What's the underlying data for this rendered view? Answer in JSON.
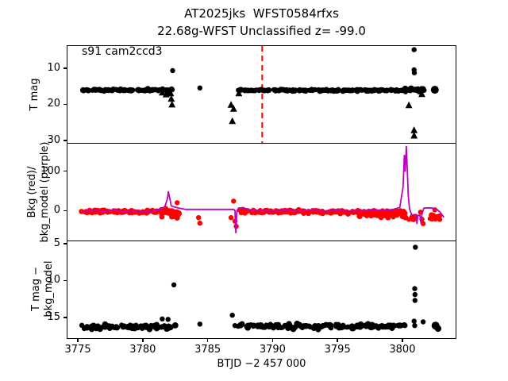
{
  "figure": {
    "title_line1": "AT2025jks  WFST0584rfxs",
    "title_line2": "22.68g-WFST Unclassified z= -99.0",
    "background": "#ffffff"
  },
  "chart_data": {
    "type": "scatter",
    "title": "AT2025jks  WFST0584rfxs — 22.68g-WFST Unclassified z= -99.0",
    "xlabel": "BTJD −2 457 000",
    "xlim": [
      3774.2,
      3804.1
    ],
    "xticks": [
      3775,
      3780,
      3785,
      3790,
      3795,
      3800
    ],
    "grid": false,
    "legend": "none",
    "colors": {
      "black": "#000000",
      "red": "#ff0000",
      "purple": "#bf00bf",
      "frame": "#000000"
    },
    "band_format": "[x_start, x_end, y_mean, y_sd, n_points] — dense noisy scatter band",
    "panels": [
      {
        "name": "t-mag",
        "ylabel_lines": [
          "T mag",
          ""
        ],
        "ylim_top": 3.9,
        "ylim_bottom": 30.7,
        "yticks": [
          10,
          20,
          30
        ],
        "annotation": "s91 cam2ccd3",
        "vline": {
          "x": 3789.2,
          "color": "#ff0000",
          "style": "dashed"
        },
        "series": [
          {
            "kind": "band",
            "color": "black",
            "marker": "circle",
            "r": 3.3,
            "seed": 11,
            "segments": [
              [
                3775.4,
                3782.4,
                16.1,
                0.22,
                72
              ],
              [
                3787.35,
                3800.2,
                16.15,
                0.2,
                130
              ],
              [
                3800.2,
                3801.6,
                16.0,
                0.45,
                22
              ]
            ]
          },
          {
            "kind": "points",
            "color": "black",
            "marker": "circle",
            "r": 3.2,
            "points": [
              [
                3782.3,
                10.7
              ],
              [
                3784.4,
                15.5
              ],
              [
                3800.9,
                4.9
              ],
              [
                3800.9,
                10.5
              ],
              [
                3800.92,
                11.3
              ],
              [
                3802.5,
                16.0,
                5
              ]
            ]
          },
          {
            "kind": "points",
            "color": "black",
            "marker": "triangle",
            "r": 4.4,
            "points": [
              [
                3781.5,
                16.9
              ],
              [
                3781.8,
                17.4
              ],
              [
                3782.0,
                16.7
              ],
              [
                3782.15,
                17.1
              ],
              [
                3782.2,
                18.6
              ],
              [
                3782.25,
                20.2
              ],
              [
                3786.8,
                20.3
              ],
              [
                3787.0,
                21.4
              ],
              [
                3786.9,
                24.8
              ],
              [
                3787.4,
                17.1
              ],
              [
                3800.5,
                20.4
              ],
              [
                3800.9,
                27.3
              ],
              [
                3800.9,
                28.8
              ],
              [
                3801.5,
                17.3
              ]
            ]
          }
        ]
      },
      {
        "name": "bkg-vs-model",
        "ylabel_lines": [
          "Bkg (red)/",
          "bkg_model (purple)"
        ],
        "ylim_top": 170,
        "ylim_bottom": -76,
        "yticks": [
          0,
          100
        ],
        "annotation": "",
        "series": [
          {
            "kind": "band",
            "color": "red",
            "marker": "circle",
            "r": 3.3,
            "seed": 7,
            "segments": [
              [
                3775.4,
                3782.5,
                -3,
                3,
                80
              ],
              [
                3781.4,
                3782.8,
                -8,
                10,
                26
              ],
              [
                3787.5,
                3800.3,
                -3,
                3.5,
                135
              ],
              [
                3796.5,
                3800.3,
                -9,
                7,
                45
              ],
              [
                3800.5,
                3801.1,
                -18,
                6,
                10
              ],
              [
                3802.2,
                3802.9,
                -17,
                6,
                14
              ]
            ]
          },
          {
            "kind": "points",
            "color": "red",
            "marker": "circle",
            "r": 3.2,
            "points": [
              [
                3782.65,
                20
              ],
              [
                3784.3,
                -18
              ],
              [
                3784.4,
                -32
              ],
              [
                3787.0,
                24
              ],
              [
                3786.8,
                -18
              ],
              [
                3787.1,
                -27
              ],
              [
                3787.2,
                -40
              ],
              [
                3801.4,
                -4
              ],
              [
                3801.5,
                -22
              ],
              [
                3801.6,
                -33
              ],
              [
                3802.5,
                2
              ]
            ]
          },
          {
            "kind": "line",
            "color": "purple",
            "width": 1.8,
            "points": [
              [
                3775.4,
                -2
              ],
              [
                3776.2,
                1
              ],
              [
                3777.0,
                -2
              ],
              [
                3777.8,
                1
              ],
              [
                3778.6,
                -2
              ],
              [
                3779.4,
                0
              ],
              [
                3780.2,
                -2
              ],
              [
                3780.9,
                0
              ],
              [
                3781.3,
                2
              ],
              [
                3781.7,
                10
              ],
              [
                3781.9,
                30
              ],
              [
                3781.97,
                48
              ],
              [
                3782.1,
                28
              ],
              [
                3782.2,
                12
              ],
              [
                3782.45,
                9
              ],
              [
                3782.8,
                6
              ],
              [
                3783.3,
                3
              ],
              [
                3787.0,
                3
              ],
              [
                3787.1,
                0
              ],
              [
                3787.17,
                -56
              ],
              [
                3787.25,
                0
              ],
              [
                3787.4,
                5
              ],
              [
                3787.7,
                8
              ],
              [
                3788.2,
                2
              ],
              [
                3789.0,
                0
              ],
              [
                3790.0,
                -1
              ],
              [
                3791.0,
                1
              ],
              [
                3792.0,
                -1
              ],
              [
                3793.0,
                1
              ],
              [
                3794.0,
                -1
              ],
              [
                3795.0,
                1
              ],
              [
                3796.0,
                -1
              ],
              [
                3797.0,
                0
              ],
              [
                3797.8,
                2
              ],
              [
                3798.6,
                0
              ],
              [
                3799.3,
                3
              ],
              [
                3799.8,
                8
              ],
              [
                3800.05,
                60
              ],
              [
                3800.15,
                140
              ],
              [
                3800.22,
                100
              ],
              [
                3800.3,
                163
              ],
              [
                3800.38,
                100
              ],
              [
                3800.45,
                40
              ],
              [
                3800.55,
                5
              ],
              [
                3800.7,
                -10
              ],
              [
                3800.9,
                -12
              ],
              [
                3801.05,
                -12
              ],
              [
                3801.12,
                -33
              ],
              [
                3801.19,
                -12
              ],
              [
                3801.35,
                -12
              ],
              [
                3801.42,
                -30
              ],
              [
                3801.5,
                -10
              ],
              [
                3801.65,
                6
              ],
              [
                3802.0,
                7
              ],
              [
                3802.4,
                6
              ],
              [
                3802.7,
                2
              ],
              [
                3802.95,
                -6
              ],
              [
                3803.2,
                -17
              ]
            ]
          }
        ]
      },
      {
        "name": "t-mag-minus-bkg-model",
        "ylabel_lines": [
          "T mag −",
          "bkg_model"
        ],
        "ylim_top": 4.7,
        "ylim_bottom": 17.8,
        "yticks": [
          5,
          10,
          15
        ],
        "annotation": "",
        "series": [
          {
            "kind": "band",
            "color": "black",
            "marker": "circle",
            "r": 3.4,
            "seed": 23,
            "segments": [
              [
                3775.4,
                3782.4,
                16.25,
                0.28,
                75
              ],
              [
                3787.6,
                3800.2,
                16.2,
                0.26,
                135
              ]
            ]
          },
          {
            "kind": "points",
            "color": "black",
            "marker": "circle",
            "r": 3.2,
            "points": [
              [
                3781.5,
                15.2
              ],
              [
                3781.95,
                15.25
              ],
              [
                3782.4,
                10.6
              ],
              [
                3784.4,
                15.9
              ],
              [
                3786.9,
                14.7
              ],
              [
                3787.1,
                16.1
              ],
              [
                3787.35,
                16.2
              ],
              [
                3801.0,
                5.5
              ],
              [
                3800.95,
                11.1
              ],
              [
                3800.97,
                11.9
              ],
              [
                3800.97,
                12.7
              ],
              [
                3800.9,
                15.5
              ],
              [
                3800.95,
                16.1
              ],
              [
                3801.6,
                15.6
              ],
              [
                3802.55,
                16.1,
                5
              ],
              [
                3802.75,
                16.5,
                4.2
              ]
            ]
          }
        ]
      }
    ]
  }
}
